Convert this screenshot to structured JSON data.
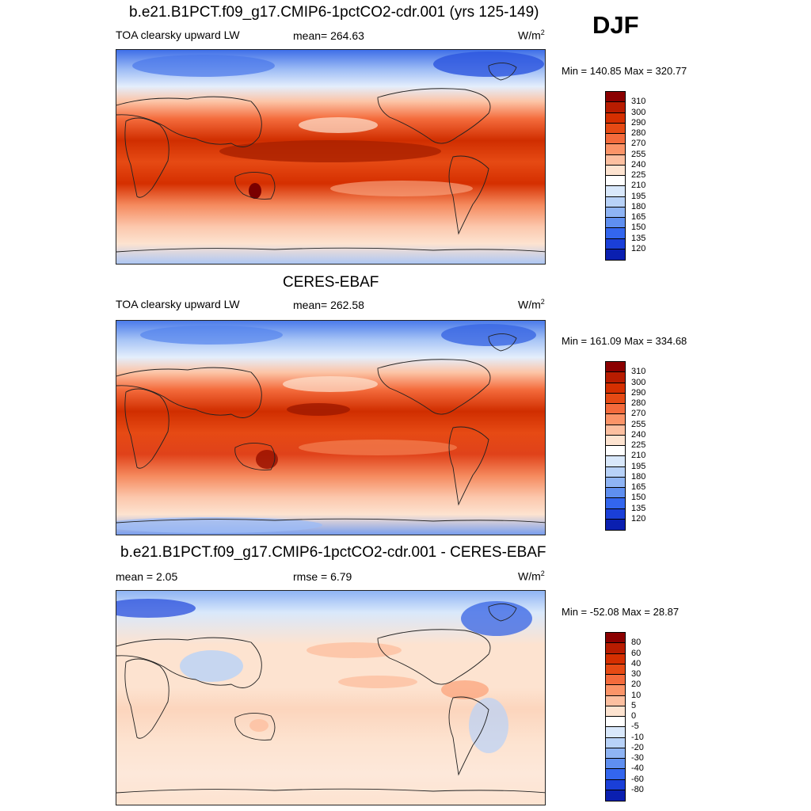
{
  "season": "DJF",
  "panels": [
    {
      "title": "b.e21.B1PCT.f09_g17.CMIP6-1pctCO2-cdr.001 (yrs 125-149)",
      "left_label": "TOA clearsky upward LW",
      "mid_label": "mean= 264.63",
      "units": "W/m",
      "units_sup": "2",
      "minmax": "Min = 140.85 Max = 320.77",
      "scale": "abs",
      "colorbar": {
        "labels": [
          "310",
          "300",
          "290",
          "280",
          "270",
          "255",
          "240",
          "225",
          "210",
          "195",
          "180",
          "165",
          "150",
          "135",
          "120"
        ],
        "colors": [
          "#8b0000",
          "#b81c00",
          "#d52f00",
          "#e64a14",
          "#f46b3c",
          "#fb9468",
          "#fcbfa0",
          "#fde3d0",
          "#ffffff",
          "#d9e8fb",
          "#b8d2f8",
          "#8fb4f4",
          "#5f8ff0",
          "#3366ee",
          "#1a3fd8",
          "#0a1fb0"
        ]
      }
    },
    {
      "title": "CERES-EBAF",
      "left_label": "TOA clearsky upward LW",
      "mid_label": "mean= 262.58",
      "units": "W/m",
      "units_sup": "2",
      "minmax": "Min = 161.09 Max = 334.68",
      "scale": "abs",
      "colorbar": {
        "labels": [
          "310",
          "300",
          "290",
          "280",
          "270",
          "255",
          "240",
          "225",
          "210",
          "195",
          "180",
          "165",
          "150",
          "135",
          "120"
        ],
        "colors": [
          "#8b0000",
          "#b81c00",
          "#d52f00",
          "#e64a14",
          "#f46b3c",
          "#fb9468",
          "#fcbfa0",
          "#fde3d0",
          "#ffffff",
          "#d9e8fb",
          "#b8d2f8",
          "#8fb4f4",
          "#5f8ff0",
          "#3366ee",
          "#1a3fd8",
          "#0a1fb0"
        ]
      }
    },
    {
      "title": "b.e21.B1PCT.f09_g17.CMIP6-1pctCO2-cdr.001 - CERES-EBAF",
      "left_label": "mean =   2.05",
      "mid_label": "rmse =   6.79",
      "units": "W/m",
      "units_sup": "2",
      "minmax": "Min = -52.08 Max =  28.87",
      "scale": "diff",
      "colorbar": {
        "labels": [
          "80",
          "60",
          "40",
          "30",
          "20",
          "10",
          "5",
          "0",
          "-5",
          "-10",
          "-20",
          "-30",
          "-40",
          "-60",
          "-80"
        ],
        "colors": [
          "#8b0000",
          "#b81c00",
          "#d52f00",
          "#e64a14",
          "#f46b3c",
          "#fb9468",
          "#fcbfa0",
          "#fde3d0",
          "#ffffff",
          "#d9e8fb",
          "#b8d2f8",
          "#8fb4f4",
          "#5f8ff0",
          "#3366ee",
          "#1a3fd8",
          "#0a1fb0"
        ]
      }
    }
  ]
}
